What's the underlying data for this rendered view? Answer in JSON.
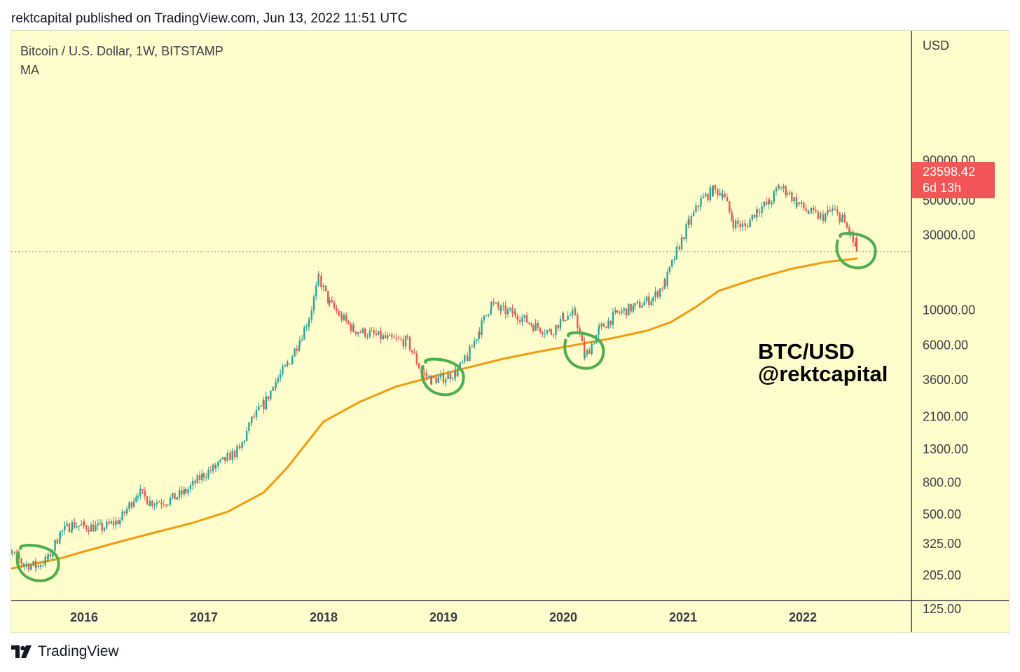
{
  "header": {
    "publish_line": "rektcapital published on TradingView.com, Jun 13, 2022 11:51 UTC"
  },
  "legend": {
    "symbol": "Bitcoin / U.S. Dollar, 1W, BITSTAMP",
    "indicator": "MA"
  },
  "price_axis": {
    "currency": "USD"
  },
  "last_price": {
    "value": "23598.42",
    "countdown": "6d 13h",
    "color": "#f15555"
  },
  "watermark": {
    "line1": "BTC/USD",
    "line2": "@rektcapital"
  },
  "footer": {
    "brand": "TradingView"
  },
  "colors": {
    "background": "#fffdcc",
    "up_candle": "#26a69a",
    "down_candle": "#ef5350",
    "moving_average": "#f39c12",
    "highlight_circle": "#4caf50",
    "last_price_line": "#e53935"
  },
  "chart_data": {
    "type": "line",
    "scale": "log",
    "y_ticks": [
      "90000.00",
      "50000.00",
      "30000.00",
      "10000.00",
      "6000.00",
      "3600.00",
      "2100.00",
      "1300.00",
      "800.00",
      "500.00",
      "325.00",
      "205.00",
      "125.00"
    ],
    "x_ticks": [
      "2016",
      "2017",
      "2018",
      "2019",
      "2020",
      "2021",
      "2022"
    ],
    "ylim": [
      125,
      90000
    ],
    "series": [
      {
        "style": "candles",
        "x": [
          2015.3,
          2015.4,
          2015.5,
          2015.6,
          2015.7,
          2015.8,
          2015.9,
          2016.0,
          2016.15,
          2016.3,
          2016.45,
          2016.55,
          2016.7,
          2016.85,
          2017.0,
          2017.1,
          2017.2,
          2017.3,
          2017.4,
          2017.5,
          2017.6,
          2017.7,
          2017.8,
          2017.88,
          2017.96,
          2018.05,
          2018.15,
          2018.25,
          2018.4,
          2018.55,
          2018.7,
          2018.82,
          2018.9,
          2019.0,
          2019.1,
          2019.2,
          2019.3,
          2019.4,
          2019.48,
          2019.6,
          2019.75,
          2019.9,
          2020.0,
          2020.1,
          2020.18,
          2020.3,
          2020.45,
          2020.6,
          2020.75,
          2020.85,
          2020.95,
          2021.05,
          2021.15,
          2021.25,
          2021.33,
          2021.42,
          2021.52,
          2021.62,
          2021.72,
          2021.8,
          2021.87,
          2021.95,
          2022.05,
          2022.15,
          2022.25,
          2022.33,
          2022.4,
          2022.45
        ],
        "values": [
          230,
          280,
          240,
          235,
          260,
          380,
          430,
          420,
          410,
          460,
          700,
          600,
          610,
          700,
          900,
          1000,
          1150,
          1300,
          2000,
          2500,
          3500,
          4500,
          6500,
          9000,
          16000,
          11000,
          9000,
          7500,
          7000,
          6500,
          6300,
          4000,
          3600,
          3700,
          4000,
          5000,
          7500,
          11000,
          10000,
          9500,
          8000,
          7200,
          9000,
          9500,
          5000,
          7500,
          9500,
          10500,
          12000,
          15000,
          24000,
          36000,
          50000,
          58000,
          56000,
          36000,
          34000,
          44000,
          48000,
          61000,
          57000,
          48000,
          42000,
          39000,
          43000,
          38000,
          30000,
          23598.42
        ]
      },
      {
        "style": "line",
        "x": [
          2015.3,
          2015.5,
          2015.8,
          2016.0,
          2016.3,
          2016.6,
          2016.9,
          2017.2,
          2017.5,
          2017.7,
          2017.85,
          2018.0,
          2018.3,
          2018.6,
          2018.9,
          2019.2,
          2019.5,
          2019.8,
          2020.1,
          2020.4,
          2020.7,
          2020.9,
          2021.1,
          2021.3,
          2021.6,
          2021.9,
          2022.2,
          2022.45
        ],
        "values": [
          218,
          235,
          262,
          290,
          335,
          385,
          440,
          520,
          690,
          1000,
          1400,
          1950,
          2600,
          3250,
          3750,
          4300,
          4900,
          5450,
          6000,
          6600,
          7400,
          8400,
          10400,
          13300,
          15800,
          18300,
          20300,
          21300
        ]
      }
    ]
  }
}
